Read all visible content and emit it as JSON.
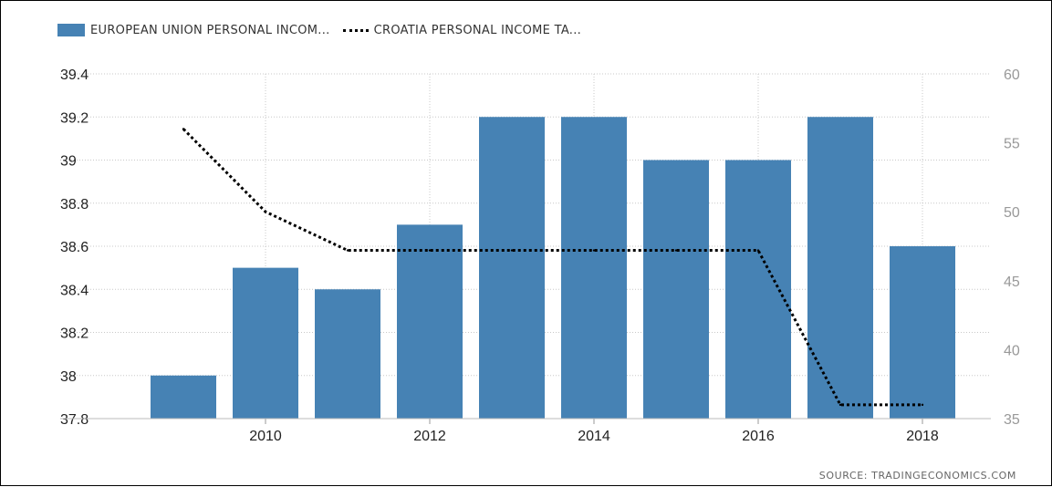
{
  "chart_data": {
    "type": "bar",
    "title": "",
    "xlabel": "",
    "ylabel": "",
    "x": [
      2009,
      2010,
      2011,
      2012,
      2013,
      2014,
      2015,
      2016,
      2017,
      2018
    ],
    "x_tick_labels": [
      "2010",
      "2012",
      "2014",
      "2016",
      "2018"
    ],
    "series": [
      {
        "name": "EUROPEAN UNION PERSONAL INCOM...",
        "type": "bar",
        "axis": "left",
        "color": "#4682b4",
        "values": [
          38.0,
          38.5,
          38.4,
          38.7,
          39.2,
          39.2,
          39.0,
          39.0,
          39.2,
          38.6
        ]
      },
      {
        "name": "CROATIA PERSONAL INCOME TA...",
        "type": "line",
        "style": "dotted",
        "axis": "right",
        "color": "#000000",
        "values": [
          56,
          50,
          47.2,
          47.2,
          47.2,
          47.2,
          47.2,
          47.2,
          36,
          36
        ]
      }
    ],
    "left_axis": {
      "ylim": [
        37.8,
        39.4
      ],
      "ticks": [
        37.8,
        38,
        38.2,
        38.4,
        38.6,
        38.8,
        39,
        39.2,
        39.4
      ],
      "tick_labels": [
        "37.8",
        "38",
        "38.2",
        "38.4",
        "38.6",
        "38.8",
        "39",
        "39.2",
        "39.4"
      ]
    },
    "right_axis": {
      "ylim": [
        35,
        60
      ],
      "ticks": [
        35,
        40,
        45,
        50,
        55,
        60
      ],
      "tick_labels": [
        "35",
        "40",
        "45",
        "50",
        "55",
        "60"
      ]
    },
    "grid": true,
    "legend_position": "top-left"
  },
  "source_text": "SOURCE: TRADINGECONOMICS.COM"
}
